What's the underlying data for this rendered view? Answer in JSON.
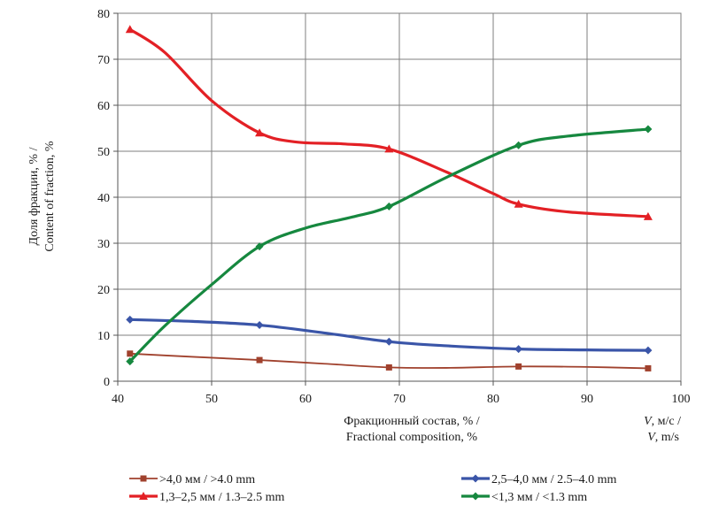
{
  "chart_data": {
    "type": "line",
    "xlabel_line1": "Фракционный состав, % /",
    "xlabel_line2": "Fractional composition, %",
    "xlabel_right_line1_var": "V",
    "xlabel_right_line1_rest": ", м/с /",
    "xlabel_right_line2_var": "V",
    "xlabel_right_line2_rest": ", m/s",
    "ylabel_line1": "Доля фракции, % /",
    "ylabel_line2": "Content of fraction, %",
    "xlim": [
      40,
      100
    ],
    "ylim": [
      0,
      80
    ],
    "x_ticks": [
      40,
      50,
      60,
      70,
      80,
      90,
      100
    ],
    "y_ticks": [
      0,
      10,
      20,
      30,
      40,
      50,
      60,
      70,
      80
    ],
    "grid": true,
    "legend_position": "bottom",
    "series": [
      {
        "name": ">4,0 мм / >4.0 mm",
        "color": "#a0412d",
        "marker": "square",
        "points": [
          [
            41.3,
            6.0
          ],
          [
            55.1,
            4.6
          ],
          [
            68.9,
            3.0
          ],
          [
            82.7,
            3.2
          ],
          [
            96.5,
            2.8
          ]
        ],
        "curve": [
          [
            41.3,
            6.0
          ],
          [
            48,
            5.3
          ],
          [
            55.1,
            4.6
          ],
          [
            62,
            3.8
          ],
          [
            68.9,
            3.0
          ],
          [
            75,
            2.9
          ],
          [
            82.7,
            3.2
          ],
          [
            90,
            3.1
          ],
          [
            96.5,
            2.8
          ]
        ]
      },
      {
        "name": "2,5–4,0 мм / 2.5–4.0 mm",
        "color": "#3a55a8",
        "marker": "diamond",
        "points": [
          [
            41.3,
            13.4
          ],
          [
            55.1,
            12.2
          ],
          [
            68.9,
            8.6
          ],
          [
            82.7,
            7.0
          ],
          [
            96.5,
            6.7
          ]
        ],
        "curve": [
          [
            41.3,
            13.4
          ],
          [
            48,
            13.0
          ],
          [
            55.1,
            12.2
          ],
          [
            62,
            10.5
          ],
          [
            68.9,
            8.6
          ],
          [
            75,
            7.7
          ],
          [
            82.7,
            7.0
          ],
          [
            90,
            6.8
          ],
          [
            96.5,
            6.7
          ]
        ]
      },
      {
        "name": "1,3–2,5 мм / 1.3–2.5 mm",
        "color": "#e32025",
        "marker": "triangle",
        "points": [
          [
            41.3,
            76.5
          ],
          [
            55.1,
            54.0
          ],
          [
            68.9,
            50.5
          ],
          [
            82.7,
            38.5
          ],
          [
            96.5,
            35.8
          ]
        ],
        "curve": [
          [
            41.3,
            76.5
          ],
          [
            45,
            71.5
          ],
          [
            50,
            61.0
          ],
          [
            55.1,
            54.0
          ],
          [
            59,
            52.0
          ],
          [
            64,
            51.6
          ],
          [
            68.9,
            50.5
          ],
          [
            75,
            45.5
          ],
          [
            80,
            40.8
          ],
          [
            82.7,
            38.5
          ],
          [
            88,
            36.8
          ],
          [
            96.5,
            35.8
          ]
        ]
      },
      {
        "name": "<1,3 мм / <1.3 mm",
        "color": "#16883f",
        "marker": "diamond",
        "points": [
          [
            41.3,
            4.3
          ],
          [
            55.1,
            29.3
          ],
          [
            68.9,
            38.0
          ],
          [
            82.7,
            51.3
          ],
          [
            96.5,
            54.8
          ]
        ],
        "curve": [
          [
            41.3,
            4.3
          ],
          [
            45,
            12.0
          ],
          [
            50,
            21.0
          ],
          [
            55.1,
            29.3
          ],
          [
            60,
            33.3
          ],
          [
            65,
            35.7
          ],
          [
            68.9,
            38.0
          ],
          [
            75,
            44.3
          ],
          [
            82.7,
            51.3
          ],
          [
            88,
            53.3
          ],
          [
            96.5,
            54.8
          ]
        ]
      }
    ]
  }
}
